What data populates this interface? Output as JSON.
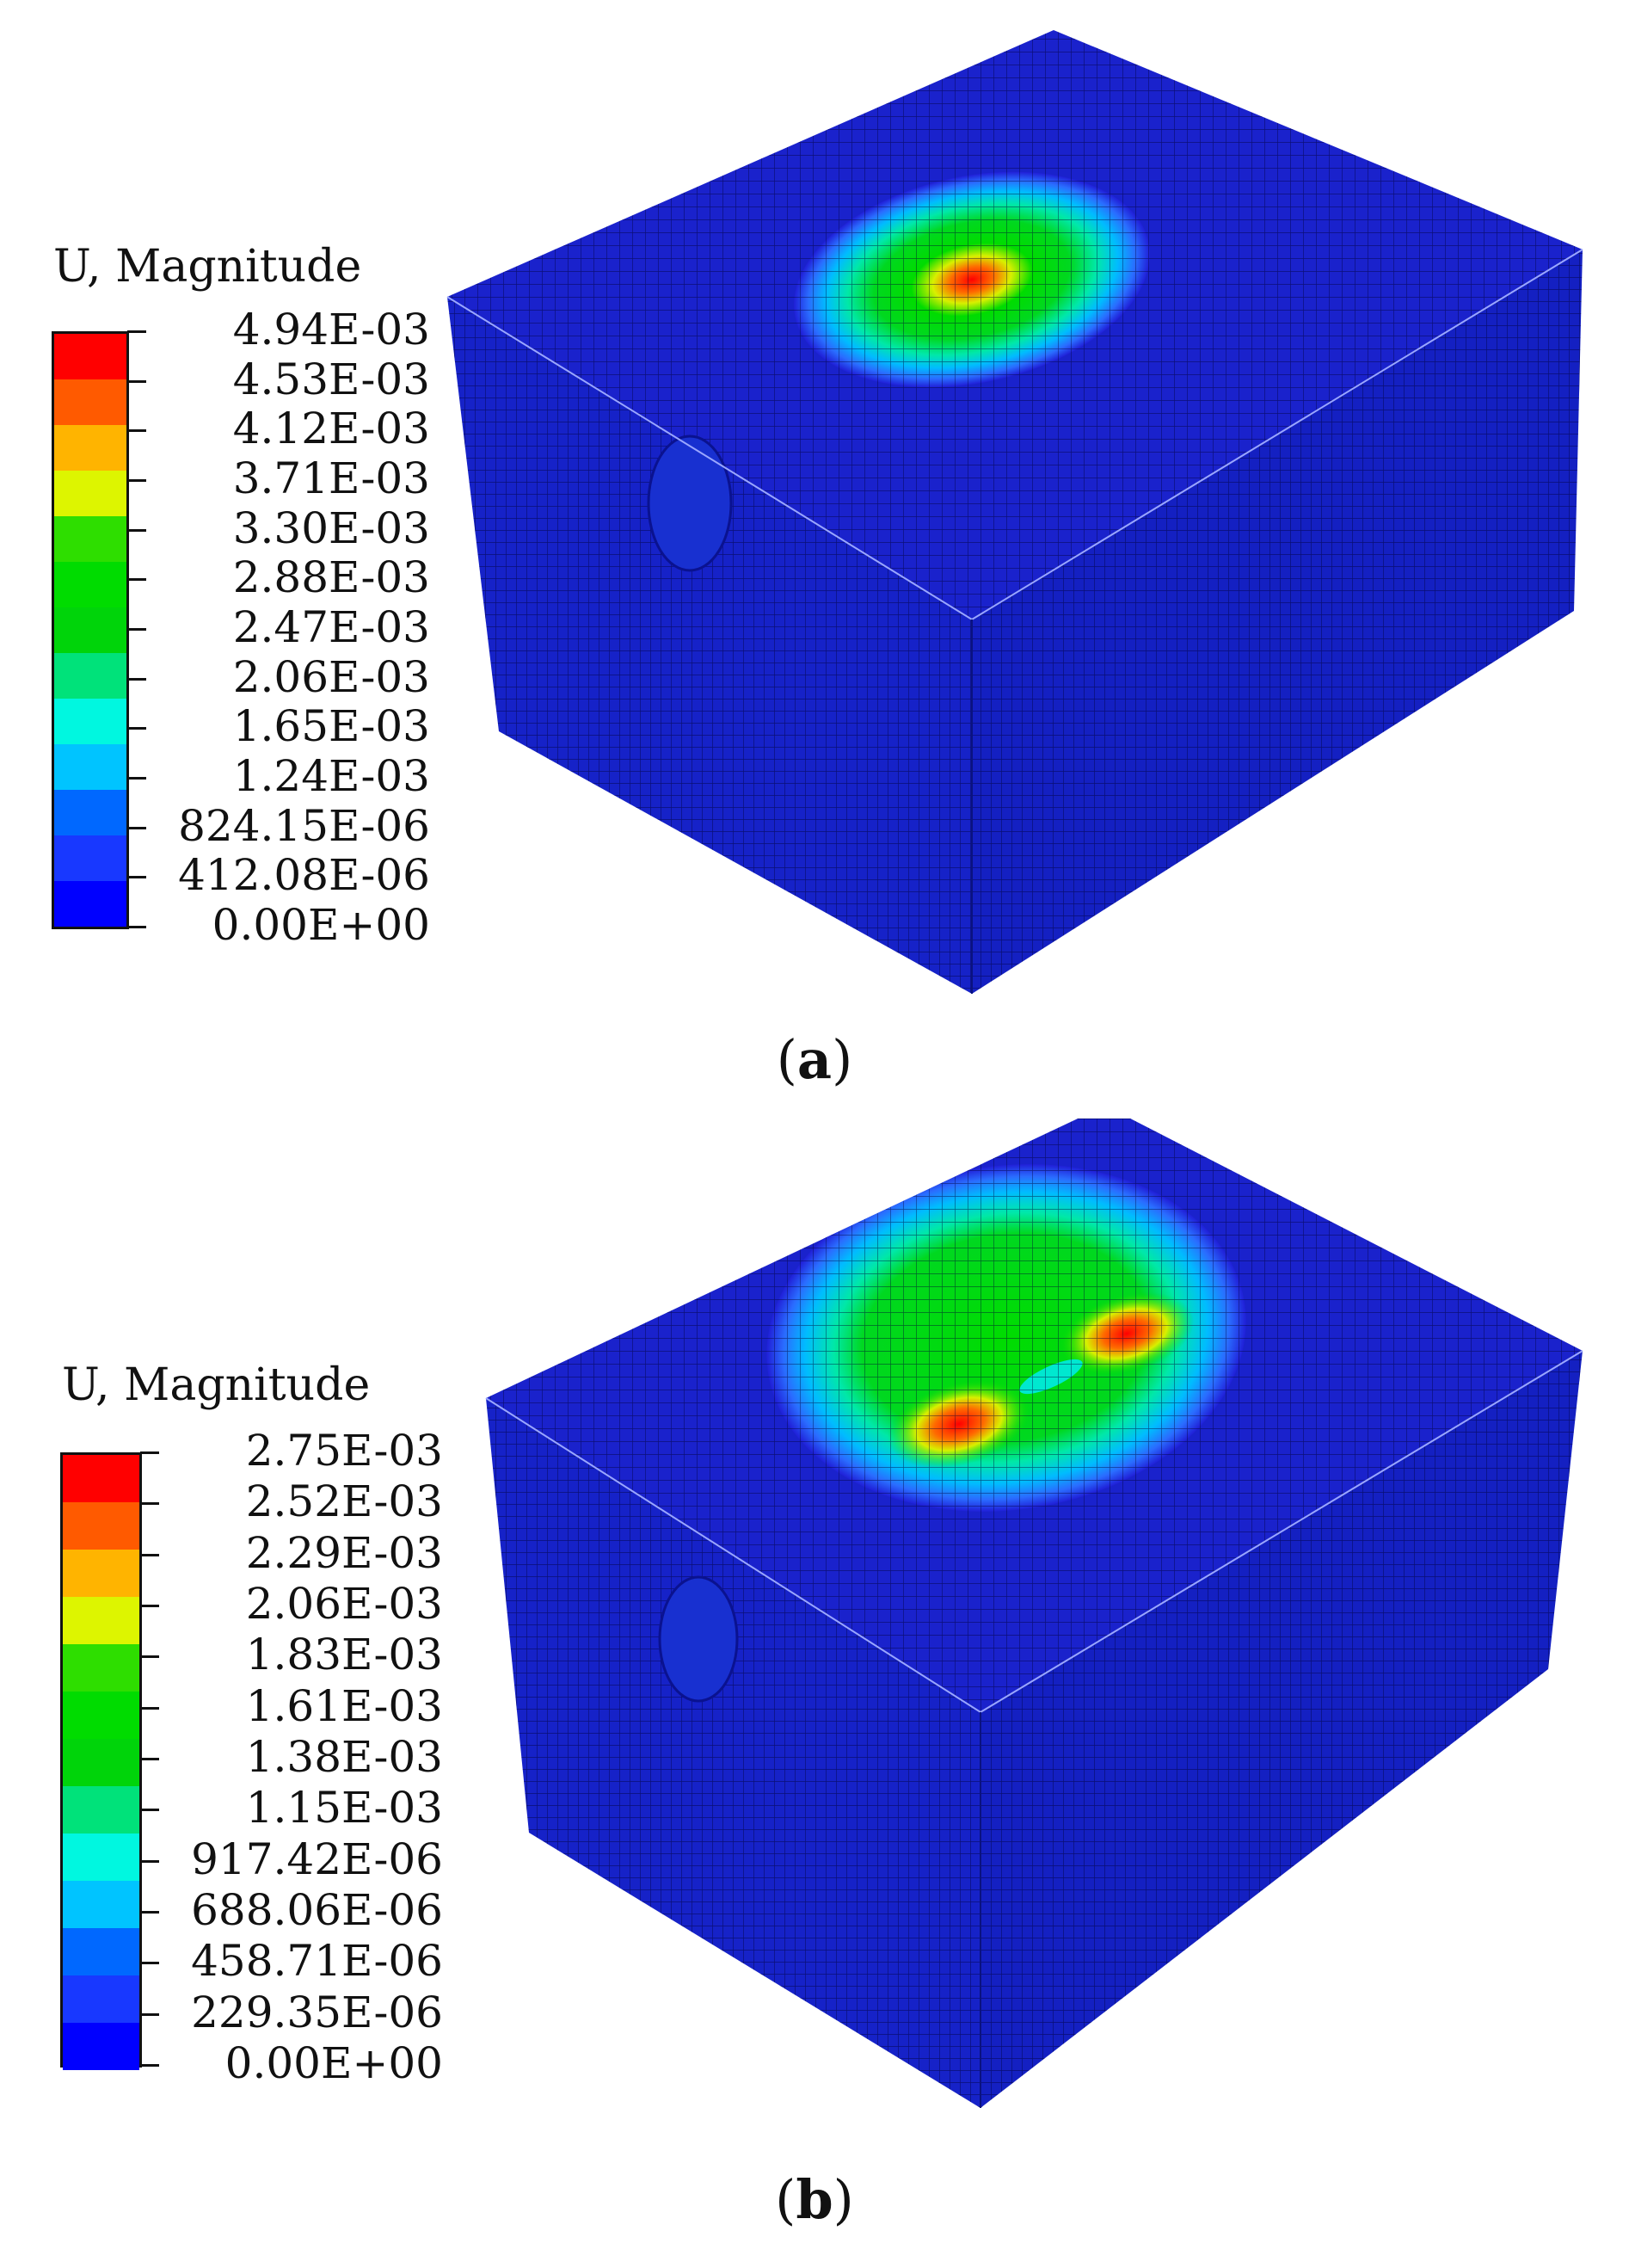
{
  "panels": [
    {
      "label": "a",
      "legend": {
        "title": "U, Magnitude",
        "colors": [
          "#ff0000",
          "#ff5a00",
          "#ffb400",
          "#ddf500",
          "#2ede00",
          "#00dc00",
          "#00d40a",
          "#00e27a",
          "#00f7e0",
          "#00c4ff",
          "#0068ff",
          "#1838ff",
          "#0000ff"
        ],
        "ticks": [
          "4.94E-03",
          "4.53E-03",
          "4.12E-03",
          "3.71E-03",
          "3.30E-03",
          "2.88E-03",
          "2.47E-03",
          "2.06E-03",
          "1.65E-03",
          "1.24E-03",
          "824.15E-06",
          "412.08E-06",
          "0.00E+00"
        ]
      },
      "caption": {
        "open": "(",
        "letter": "a",
        "close": ")"
      }
    },
    {
      "label": "b",
      "legend": {
        "title": "U, Magnitude",
        "colors": [
          "#ff0000",
          "#ff5a00",
          "#ffb400",
          "#ddf500",
          "#2ede00",
          "#00dc00",
          "#00d40a",
          "#00e27a",
          "#00f7e0",
          "#00c4ff",
          "#0068ff",
          "#1838ff",
          "#0000ff"
        ],
        "ticks": [
          "2.75E-03",
          "2.52E-03",
          "2.29E-03",
          "2.06E-03",
          "1.83E-03",
          "1.61E-03",
          "1.38E-03",
          "1.15E-03",
          "917.42E-06",
          "688.06E-06",
          "458.71E-06",
          "229.35E-06",
          "0.00E+00"
        ]
      },
      "caption": {
        "open": "(",
        "letter": "b",
        "close": ")"
      }
    }
  ]
}
